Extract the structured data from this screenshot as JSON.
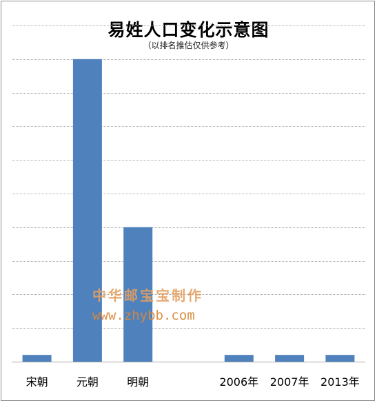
{
  "chart_data": {
    "type": "bar",
    "title": "易姓人口变化示意图",
    "subtitle": "（以排名推估仅供参考）",
    "categories": [
      "宋朝",
      "元朝",
      "明朝",
      "",
      "2006年",
      "2007年",
      "2013年"
    ],
    "values": [
      1,
      45,
      20,
      0,
      1,
      1,
      1
    ],
    "ylim": [
      0,
      50
    ],
    "y_gridlines": [
      0,
      5,
      10,
      15,
      20,
      25,
      30,
      35,
      40,
      45,
      50
    ],
    "grid": true,
    "bar_color": "#4f81bd",
    "grid_color": "#a6a6a6"
  },
  "watermark": {
    "line1": "中华邮宝宝制作",
    "line2": "www.zhybb.com"
  }
}
